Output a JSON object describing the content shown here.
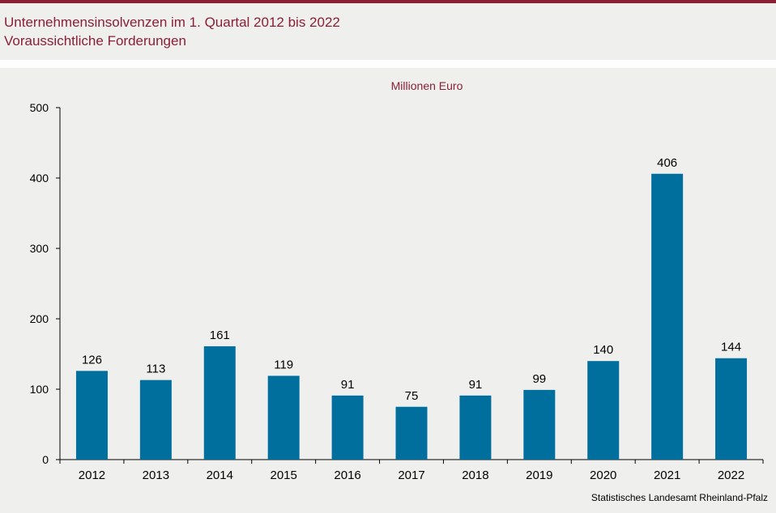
{
  "header": {
    "title": "Unternehmensinsolvenzen im 1. Quartal 2012 bis 2022",
    "subtitle": "Voraussichtliche Forderungen"
  },
  "colors": {
    "accent": "#8a1f36",
    "bar": "#006f9e",
    "background": "#efefed"
  },
  "chart_data": {
    "type": "bar",
    "unit_label": "Millionen  Euro",
    "categories": [
      "2012",
      "2013",
      "2014",
      "2015",
      "2016",
      "2017",
      "2018",
      "2019",
      "2020",
      "2021",
      "2022"
    ],
    "values": [
      126,
      113,
      161,
      119,
      91,
      75,
      91,
      99,
      140,
      406,
      144
    ],
    "ylim": [
      0,
      500
    ],
    "yticks": [
      0,
      100,
      200,
      300,
      400,
      500
    ],
    "grid": false,
    "legend": "none"
  },
  "footer": {
    "source": "Statistisches Landesamt  Rheinland-Pfalz"
  }
}
